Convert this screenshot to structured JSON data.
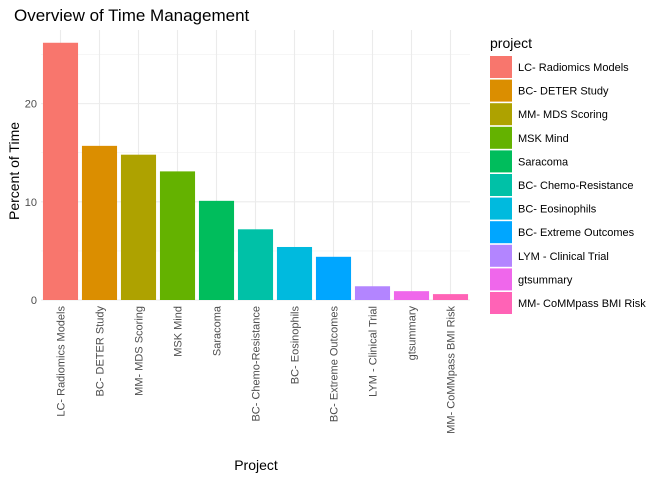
{
  "chart_data": {
    "type": "bar",
    "title": "Overview of Time Management",
    "xlabel": "Project",
    "ylabel": "Percent of Time",
    "ylim": [
      0,
      27.5
    ],
    "yticks": [
      0,
      10,
      20
    ],
    "grid": true,
    "legend": {
      "title": "project",
      "position": "right"
    },
    "categories": [
      "LC- Radiomics Models",
      "BC- DETER Study",
      "MM- MDS Scoring",
      "MSK Mind",
      "Saracoma",
      "BC- Chemo-Resistance",
      "BC- Eosinophils",
      "BC- Extreme Outcomes",
      "LYM - Clinical Trial",
      "gtsummary",
      "MM- CoMMpass BMI Risk"
    ],
    "values": [
      26.2,
      15.7,
      14.8,
      13.1,
      10.1,
      7.2,
      5.4,
      4.4,
      1.4,
      0.9,
      0.6
    ],
    "colors": [
      "#F8766D",
      "#DB8E00",
      "#AEA200",
      "#64B200",
      "#00BD5C",
      "#00C1A7",
      "#00BADE",
      "#00A6FF",
      "#B385FF",
      "#EF67EB",
      "#FF63B6"
    ]
  }
}
